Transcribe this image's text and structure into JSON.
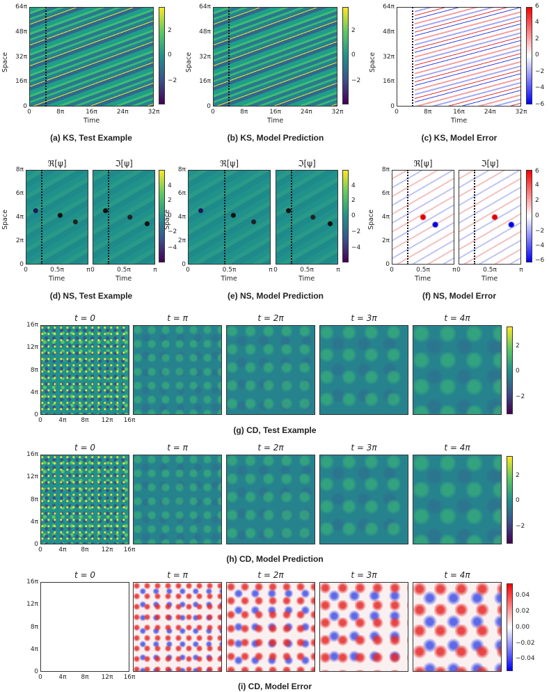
{
  "captions": {
    "a": "(a) KS, Test Example",
    "b": "(b) KS, Model Prediction",
    "c": "(c) KS, Model Error",
    "d": "(d) NS, Test Example",
    "e": "(e) NS, Model Prediction",
    "f": "(f) NS, Model Error",
    "g": "(g) CD, Test Example",
    "h": "(h) CD, Model Prediction",
    "i": "(i) CD, Model Error"
  },
  "axis": {
    "space": "Space",
    "time": "Time"
  },
  "ks": {
    "yticks": [
      "64π",
      "48π",
      "32π",
      "16π",
      "0"
    ],
    "xticks": [
      "0",
      "8π",
      "16π",
      "24π",
      "32π"
    ],
    "cbar_main": [
      "2",
      "0",
      "−2"
    ],
    "cbar_err": [
      "6",
      "4",
      "2",
      "0",
      "−2",
      "−4",
      "−6"
    ]
  },
  "ns": {
    "re_title": "ℜ[ψ]",
    "im_title": "ℑ[ψ]",
    "yticks": [
      "8π",
      "6π",
      "4π",
      "2π",
      "0"
    ],
    "xticks": [
      "0",
      "0.5π",
      "π"
    ],
    "cbar_main": [
      "4",
      "2",
      "0",
      "−2",
      "−4"
    ],
    "cbar_err": [
      "6",
      "4",
      "2",
      "0",
      "−2",
      "−4",
      "−6"
    ]
  },
  "cd": {
    "times": [
      "t = 0",
      "t = π",
      "t = 2π",
      "t = 3π",
      "t = 4π"
    ],
    "yticks": [
      "16π",
      "12π",
      "8π",
      "4π",
      "0"
    ],
    "xticks": [
      "0",
      "4π",
      "8π",
      "12π",
      "16π"
    ],
    "cbar_main": [
      "2",
      "0",
      "−2"
    ],
    "cbar_err": [
      "0.04",
      "0.02",
      "0.00",
      "−0.02",
      "−0.04"
    ]
  },
  "colors": {
    "viridis_dark": "#440154",
    "viridis_mid": "#21918c",
    "viridis_yellow": "#fde725",
    "err_red": "#ff0000",
    "err_blue": "#0000ff"
  }
}
